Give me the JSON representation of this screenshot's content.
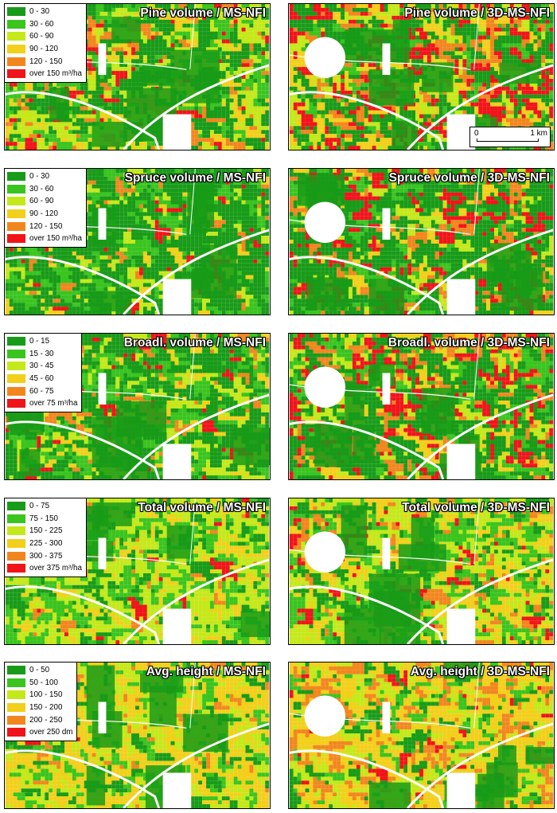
{
  "colors": {
    "c1": "#189b18",
    "c2": "#3ac41e",
    "c3": "#c5e81a",
    "c4": "#f2cf1a",
    "c5": "#f2861e",
    "c6": "#f0141a"
  },
  "scalebar": {
    "start_label": "0",
    "end_label": "1 km"
  },
  "rows": [
    {
      "name": "pine",
      "legend": [
        "0 - 30",
        "30 - 60",
        "60 - 90",
        "90 - 120",
        "120 - 150",
        "over 150 m³/ha"
      ],
      "left_title": "Pine volume / MS-NFI",
      "right_title": "Pine volume / 3D-MS-NFI"
    },
    {
      "name": "spruce",
      "legend": [
        "0 - 30",
        "30 - 60",
        "60 - 90",
        "90 - 120",
        "120 - 150",
        "over 150 m³/ha"
      ],
      "left_title": "Spruce volume / MS-NFI",
      "right_title": "Spruce volume / 3D-MS-NFI"
    },
    {
      "name": "broadleaved",
      "legend": [
        "0 - 15",
        "15 - 30",
        "30 - 45",
        "45 - 60",
        "60 - 75",
        "over 75 m³/ha"
      ],
      "left_title": "Broadl. volume / MS-NFI",
      "right_title": "Broadl. volume / 3D-MS-NFI"
    },
    {
      "name": "total",
      "legend": [
        "0 - 75",
        "75 - 150",
        "150 - 225",
        "225 - 300",
        "300 - 375",
        "over 375 m³/ha"
      ],
      "left_title": "Total volume / MS-NFI",
      "right_title": "Total volume / 3D-MS-NFI"
    },
    {
      "name": "height",
      "legend": [
        "0 - 50",
        "50 - 100",
        "100 - 150",
        "150 - 200",
        "200 - 250",
        "over 250 dm"
      ],
      "left_title": "Avg. height / MS-NFI",
      "right_title": "Avg. height / 3D-MS-NFI"
    }
  ]
}
